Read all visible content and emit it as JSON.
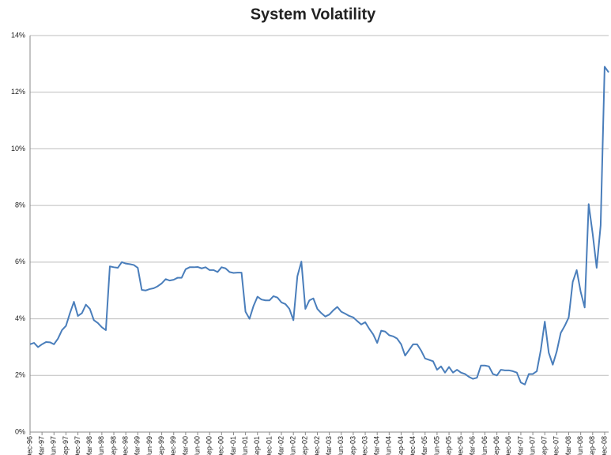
{
  "chart_data": {
    "type": "line",
    "title": "System Volatility",
    "categories": [
      "Dec-96",
      null,
      null,
      "Mar-97",
      null,
      null,
      "Jun-97",
      null,
      null,
      "Sep-97",
      null,
      null,
      "Dec-97",
      null,
      null,
      "Mar-98",
      null,
      null,
      "Jun-98",
      null,
      null,
      "Sep-98",
      null,
      null,
      "Dec-98",
      null,
      null,
      "Mar-99",
      null,
      null,
      "Jun-99",
      null,
      null,
      "Sep-99",
      null,
      null,
      "Dec-99",
      null,
      null,
      "Mar-00",
      null,
      null,
      "Jun-00",
      null,
      null,
      "Sep-00",
      null,
      null,
      "Dec-00",
      null,
      null,
      "Mar-01",
      null,
      null,
      "Jun-01",
      null,
      null,
      "Sep-01",
      null,
      null,
      "Dec-01",
      null,
      null,
      "Mar-02",
      null,
      null,
      "Jun-02",
      null,
      null,
      "Sep-02",
      null,
      null,
      "Dec-02",
      null,
      null,
      "Mar-03",
      null,
      null,
      "Jun-03",
      null,
      null,
      "Sep-03",
      null,
      null,
      "Dec-03",
      null,
      null,
      "Mar-04",
      null,
      null,
      "Jun-04",
      null,
      null,
      "Sep-04",
      null,
      null,
      "Dec-04",
      null,
      null,
      "Mar-05",
      null,
      null,
      "Jun-05",
      null,
      null,
      "Sep-05",
      null,
      null,
      "Dec-05",
      null,
      null,
      "Mar-06",
      null,
      null,
      "Jun-06",
      null,
      null,
      "Sep-06",
      null,
      null,
      "Dec-06",
      null,
      null,
      "Mar-07",
      null,
      null,
      "Jun-07",
      null,
      null,
      "Sep-07",
      null,
      null,
      "Dec-07",
      null,
      null,
      "Mar-08",
      null,
      null,
      "Jun-08",
      null,
      null,
      "Sep-08",
      null,
      null,
      "Dec-08",
      null
    ],
    "series": [
      {
        "name": "System Volatility",
        "color": "#4a7ebb",
        "values": [
          3.1,
          3.15,
          3.0,
          3.1,
          3.18,
          3.17,
          3.1,
          3.3,
          3.6,
          3.75,
          4.2,
          4.6,
          4.1,
          4.2,
          4.5,
          4.35,
          3.95,
          3.85,
          3.7,
          3.6,
          5.85,
          5.82,
          5.8,
          6.0,
          5.95,
          5.93,
          5.9,
          5.8,
          5.02,
          5.0,
          5.05,
          5.08,
          5.15,
          5.25,
          5.4,
          5.35,
          5.38,
          5.45,
          5.45,
          5.75,
          5.82,
          5.82,
          5.83,
          5.78,
          5.82,
          5.72,
          5.72,
          5.65,
          5.82,
          5.78,
          5.65,
          5.62,
          5.63,
          5.63,
          4.25,
          4.0,
          4.45,
          4.78,
          4.68,
          4.65,
          4.65,
          4.8,
          4.75,
          4.58,
          4.52,
          4.35,
          3.95,
          5.5,
          6.02,
          4.35,
          4.65,
          4.72,
          4.35,
          4.2,
          4.08,
          4.15,
          4.3,
          4.42,
          4.25,
          4.18,
          4.1,
          4.05,
          3.92,
          3.8,
          3.88,
          3.65,
          3.45,
          3.15,
          3.58,
          3.55,
          3.42,
          3.38,
          3.3,
          3.1,
          2.7,
          2.9,
          3.1,
          3.1,
          2.88,
          2.6,
          2.55,
          2.5,
          2.2,
          2.32,
          2.1,
          2.3,
          2.1,
          2.2,
          2.1,
          2.05,
          1.95,
          1.88,
          1.92,
          2.35,
          2.35,
          2.32,
          2.05,
          2.0,
          2.2,
          2.18,
          2.18,
          2.15,
          2.1,
          1.75,
          1.68,
          2.05,
          2.05,
          2.15,
          2.9,
          3.9,
          2.8,
          2.38,
          2.85,
          3.5,
          3.75,
          4.05,
          5.3,
          5.72,
          4.95,
          4.4,
          8.05,
          7.0,
          5.8,
          7.3,
          12.9,
          12.7
        ]
      }
    ],
    "ylim": [
      0,
      14
    ],
    "yticks": [
      {
        "value": 0,
        "label": "0%"
      },
      {
        "value": 2,
        "label": "2%"
      },
      {
        "value": 4,
        "label": "4%"
      },
      {
        "value": 6,
        "label": "6%"
      },
      {
        "value": 8,
        "label": "8%"
      },
      {
        "value": 10,
        "label": "10%"
      },
      {
        "value": 12,
        "label": "12%"
      },
      {
        "value": 14,
        "label": "14%"
      }
    ],
    "grid": true
  }
}
